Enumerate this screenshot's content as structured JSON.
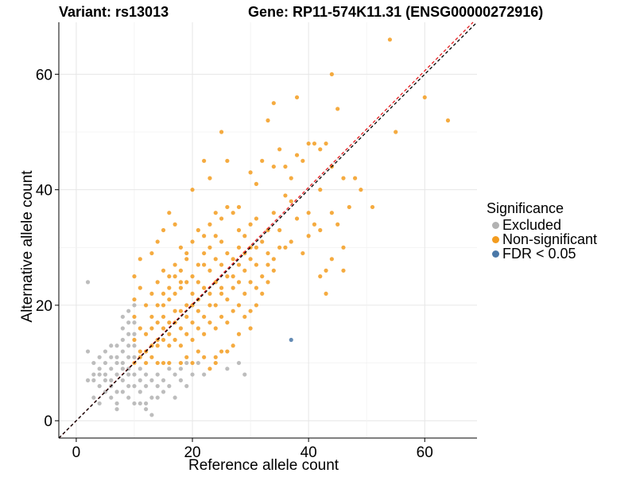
{
  "chart_data": {
    "type": "scatter",
    "title_variant": "Variant: rs13013",
    "title_gene": "Gene: RP11-574K11.31 (ENSG00000272916)",
    "xlabel": "Reference allele count",
    "ylabel": "Alternative allele count",
    "xlim": [
      -3,
      69
    ],
    "ylim": [
      -3,
      69
    ],
    "xticks": [
      0,
      20,
      40,
      60
    ],
    "yticks": [
      0,
      20,
      40,
      60
    ],
    "grid": true,
    "reference_line": {
      "slope": 1,
      "intercept": 0,
      "color": "#000000",
      "style": "dashed"
    },
    "fit_line": {
      "slope": 1.01,
      "intercept": 0,
      "color": "#e41a1c",
      "style": "dashed"
    },
    "legend": {
      "title": "Significance",
      "position": "right",
      "items": [
        {
          "label": "Excluded",
          "color": "#b2b2b2"
        },
        {
          "label": "Non-significant",
          "color": "#f39c1f"
        },
        {
          "label": "FDR < 0.05",
          "color": "#4a78a8"
        }
      ]
    },
    "series": [
      {
        "name": "Excluded",
        "color": "#b2b2b2",
        "points": [
          [
            2,
            24
          ],
          [
            2,
            12
          ],
          [
            2,
            7
          ],
          [
            3,
            10
          ],
          [
            3,
            8
          ],
          [
            3,
            7
          ],
          [
            3,
            4
          ],
          [
            4,
            11
          ],
          [
            4,
            9
          ],
          [
            4,
            8
          ],
          [
            4,
            6
          ],
          [
            4,
            3
          ],
          [
            5,
            12
          ],
          [
            5,
            10
          ],
          [
            5,
            8
          ],
          [
            5,
            7
          ],
          [
            5,
            5
          ],
          [
            6,
            13
          ],
          [
            6,
            11
          ],
          [
            6,
            9
          ],
          [
            6,
            7
          ],
          [
            6,
            6
          ],
          [
            6,
            4
          ],
          [
            7,
            13
          ],
          [
            7,
            11
          ],
          [
            7,
            10
          ],
          [
            7,
            8
          ],
          [
            7,
            5
          ],
          [
            7,
            3
          ],
          [
            7,
            2
          ],
          [
            8,
            18
          ],
          [
            8,
            16
          ],
          [
            8,
            14
          ],
          [
            8,
            12
          ],
          [
            8,
            10
          ],
          [
            8,
            9
          ],
          [
            8,
            7
          ],
          [
            8,
            5
          ],
          [
            9,
            19
          ],
          [
            9,
            17
          ],
          [
            9,
            15
          ],
          [
            9,
            13
          ],
          [
            9,
            11
          ],
          [
            9,
            9
          ],
          [
            9,
            8
          ],
          [
            9,
            6
          ],
          [
            9,
            4
          ],
          [
            10,
            20
          ],
          [
            10,
            17
          ],
          [
            10,
            15
          ],
          [
            10,
            13
          ],
          [
            10,
            11
          ],
          [
            10,
            8
          ],
          [
            10,
            6
          ],
          [
            10,
            3
          ],
          [
            11,
            9
          ],
          [
            11,
            7
          ],
          [
            11,
            5
          ],
          [
            11,
            3
          ],
          [
            12,
            8
          ],
          [
            12,
            6
          ],
          [
            12,
            3
          ],
          [
            12,
            2
          ],
          [
            13,
            7
          ],
          [
            13,
            4
          ],
          [
            13,
            1
          ],
          [
            14,
            8
          ],
          [
            14,
            6
          ],
          [
            14,
            4
          ],
          [
            15,
            7
          ],
          [
            15,
            5
          ],
          [
            16,
            9
          ],
          [
            16,
            6
          ],
          [
            17,
            8
          ],
          [
            17,
            4
          ],
          [
            18,
            9
          ],
          [
            18,
            7
          ],
          [
            19,
            10
          ],
          [
            19,
            6
          ],
          [
            20,
            8
          ],
          [
            21,
            10
          ],
          [
            22,
            8
          ],
          [
            26,
            9
          ],
          [
            28,
            10
          ],
          [
            29,
            8
          ]
        ]
      },
      {
        "name": "Non-significant",
        "color": "#f39c1f",
        "points": [
          [
            20,
            40
          ],
          [
            22,
            45
          ],
          [
            23,
            42
          ],
          [
            25,
            50
          ],
          [
            26,
            45
          ],
          [
            28,
            37
          ],
          [
            30,
            43
          ],
          [
            31,
            41
          ],
          [
            32,
            45
          ],
          [
            33,
            52
          ],
          [
            34,
            44
          ],
          [
            34,
            55
          ],
          [
            35,
            47
          ],
          [
            36,
            44
          ],
          [
            37,
            42
          ],
          [
            38,
            56
          ],
          [
            38,
            46
          ],
          [
            39,
            45
          ],
          [
            40,
            48
          ],
          [
            41,
            48
          ],
          [
            42,
            47
          ],
          [
            42,
            40
          ],
          [
            43,
            48
          ],
          [
            44,
            60
          ],
          [
            44,
            44
          ],
          [
            45,
            54
          ],
          [
            46,
            42
          ],
          [
            47,
            37
          ],
          [
            48,
            42
          ],
          [
            49,
            40
          ],
          [
            51,
            37
          ],
          [
            54,
            66
          ],
          [
            55,
            50
          ],
          [
            60,
            56
          ],
          [
            64,
            52
          ],
          [
            46,
            30
          ],
          [
            44,
            28
          ],
          [
            43,
            26
          ],
          [
            46,
            26
          ],
          [
            43,
            22
          ],
          [
            42,
            25
          ],
          [
            40,
            32
          ],
          [
            39,
            29
          ],
          [
            38,
            35
          ],
          [
            37,
            31
          ],
          [
            36,
            30
          ],
          [
            34,
            26
          ],
          [
            33,
            24
          ],
          [
            32,
            22
          ],
          [
            30,
            19
          ],
          [
            28,
            15
          ],
          [
            27,
            13
          ],
          [
            25,
            12
          ],
          [
            24,
            11
          ],
          [
            22,
            11
          ],
          [
            21,
            12
          ],
          [
            16,
            36
          ],
          [
            17,
            34
          ],
          [
            15,
            33
          ],
          [
            14,
            31
          ],
          [
            13,
            29
          ],
          [
            11,
            28
          ],
          [
            10,
            25
          ],
          [
            11,
            23
          ],
          [
            10,
            21
          ],
          [
            10,
            18
          ],
          [
            11,
            16
          ],
          [
            10,
            14
          ],
          [
            11,
            12
          ],
          [
            10,
            10
          ],
          [
            11,
            11
          ],
          [
            12,
            10
          ],
          [
            13,
            11
          ],
          [
            14,
            10
          ],
          [
            15,
            10
          ],
          [
            16,
            10
          ],
          [
            18,
            10
          ],
          [
            19,
            11
          ],
          [
            20,
            10
          ],
          [
            24,
            10
          ],
          [
            26,
            12
          ],
          [
            23,
            9
          ],
          [
            31,
            27
          ],
          [
            33,
            29
          ],
          [
            35,
            33
          ],
          [
            36,
            39
          ],
          [
            37,
            38
          ],
          [
            40,
            36
          ],
          [
            41,
            34
          ],
          [
            42,
            33
          ],
          [
            44,
            36
          ],
          [
            45,
            34
          ],
          [
            18,
            30
          ],
          [
            19,
            29
          ],
          [
            20,
            31
          ],
          [
            21,
            33
          ],
          [
            22,
            32
          ],
          [
            23,
            34
          ],
          [
            24,
            36
          ],
          [
            25,
            35
          ],
          [
            26,
            37
          ],
          [
            27,
            36
          ],
          [
            28,
            33
          ],
          [
            29,
            32
          ],
          [
            30,
            34
          ],
          [
            31,
            35
          ],
          [
            32,
            31
          ],
          [
            33,
            33
          ],
          [
            34,
            36
          ],
          [
            20,
            25
          ],
          [
            21,
            24
          ],
          [
            22,
            27
          ],
          [
            23,
            26
          ],
          [
            24,
            28
          ],
          [
            25,
            27
          ],
          [
            26,
            29
          ],
          [
            27,
            28
          ],
          [
            28,
            30
          ],
          [
            29,
            26
          ],
          [
            30,
            28
          ],
          [
            31,
            30
          ],
          [
            15,
            20
          ],
          [
            16,
            21
          ],
          [
            17,
            22
          ],
          [
            18,
            23
          ],
          [
            19,
            20
          ],
          [
            20,
            22
          ],
          [
            21,
            21
          ],
          [
            22,
            23
          ],
          [
            23,
            22
          ],
          [
            24,
            24
          ],
          [
            25,
            23
          ],
          [
            26,
            25
          ],
          [
            12,
            15
          ],
          [
            13,
            16
          ],
          [
            14,
            17
          ],
          [
            15,
            18
          ],
          [
            16,
            15
          ],
          [
            17,
            17
          ],
          [
            18,
            16
          ],
          [
            19,
            18
          ],
          [
            20,
            17
          ],
          [
            21,
            19
          ],
          [
            22,
            18
          ],
          [
            23,
            20
          ],
          [
            12,
            20
          ],
          [
            13,
            22
          ],
          [
            14,
            24
          ],
          [
            15,
            26
          ],
          [
            16,
            25
          ],
          [
            17,
            27
          ],
          [
            18,
            26
          ],
          [
            19,
            28
          ],
          [
            14,
            13
          ],
          [
            15,
            14
          ],
          [
            16,
            13
          ],
          [
            17,
            14
          ],
          [
            18,
            13
          ],
          [
            19,
            15
          ],
          [
            20,
            14
          ],
          [
            21,
            16
          ],
          [
            22,
            15
          ],
          [
            23,
            17
          ],
          [
            24,
            16
          ],
          [
            25,
            18
          ],
          [
            26,
            17
          ],
          [
            27,
            19
          ],
          [
            28,
            20
          ],
          [
            29,
            22
          ],
          [
            30,
            24
          ],
          [
            31,
            23
          ],
          [
            32,
            25
          ],
          [
            33,
            27
          ],
          [
            34,
            28
          ],
          [
            35,
            30
          ],
          [
            29,
            18
          ],
          [
            30,
            16
          ],
          [
            31,
            20
          ],
          [
            27,
            23
          ],
          [
            28,
            24
          ],
          [
            26,
            21
          ],
          [
            24,
            20
          ],
          [
            25,
            22
          ],
          [
            27,
            25
          ],
          [
            28,
            27
          ],
          [
            29,
            29
          ],
          [
            30,
            30
          ],
          [
            18,
            19
          ],
          [
            19,
            24
          ],
          [
            20,
            20
          ],
          [
            21,
            27
          ],
          [
            22,
            29
          ],
          [
            23,
            30
          ],
          [
            24,
            32
          ],
          [
            25,
            31
          ],
          [
            13,
            18
          ],
          [
            14,
            20
          ],
          [
            15,
            22
          ],
          [
            16,
            23
          ],
          [
            17,
            25
          ],
          [
            18,
            24
          ],
          [
            12,
            12
          ],
          [
            13,
            13
          ],
          [
            14,
            14
          ],
          [
            15,
            16
          ],
          [
            16,
            17
          ],
          [
            17,
            19
          ]
        ]
      },
      {
        "name": "FDR < 0.05",
        "color": "#4a78a8",
        "points": [
          [
            37,
            14
          ]
        ]
      }
    ]
  }
}
